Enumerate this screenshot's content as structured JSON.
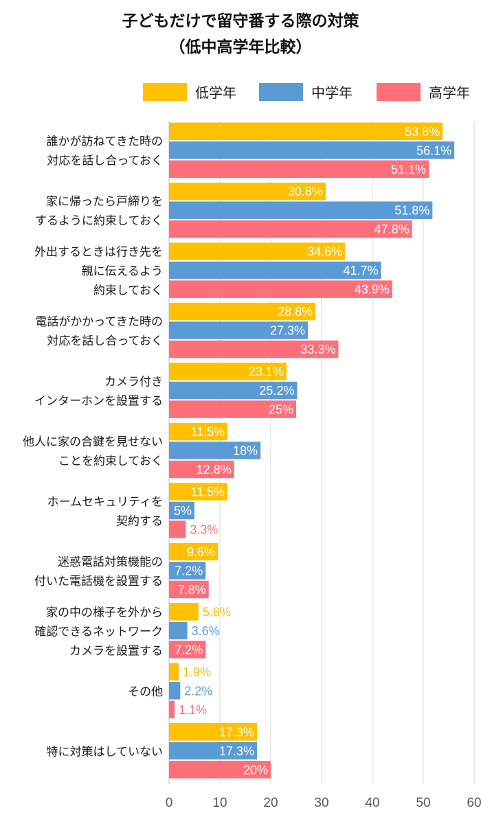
{
  "chart_data": {
    "type": "bar",
    "orientation": "horizontal",
    "title": "子どもだけで留守番する際の対策",
    "subtitle": "（低中高学年比較）",
    "legend_position": "top-right",
    "grid": true,
    "xlim": [
      0,
      60
    ],
    "xticks": [
      "0",
      "10",
      "20",
      "30",
      "40",
      "50",
      "60"
    ],
    "categories": [
      [
        "誰かが訪ねてきた時の",
        "対応を話し合っておく"
      ],
      [
        "家に帰ったら戸締りを",
        "するように約束しておく"
      ],
      [
        "外出するときは行き先を",
        "親に伝えるよう",
        "約束しておく"
      ],
      [
        "電話がかかってきた時の",
        "対応を話し合っておく"
      ],
      [
        "カメラ付き",
        "インターホンを設置する"
      ],
      [
        "他人に家の合鍵を見せない",
        "ことを約束しておく"
      ],
      [
        "ホームセキュリティを",
        "契約する"
      ],
      [
        "迷惑電話対策機能の",
        "付いた電話機を設置する"
      ],
      [
        "家の中の様子を外から",
        "確認できるネットワーク",
        "カメラを設置する"
      ],
      [
        "その他"
      ],
      [
        "特に対策はしていない"
      ]
    ],
    "series": [
      {
        "name": "低学年",
        "color": "#FFC000",
        "values": [
          53.8,
          30.8,
          34.6,
          28.8,
          23.1,
          11.5,
          11.5,
          9.6,
          5.8,
          1.9,
          17.3
        ],
        "labels": [
          "53.8%",
          "30.8%",
          "34.6%",
          "28.8%",
          "23.1%",
          "11.5%",
          "11.5%",
          "9.6%",
          "5.8%",
          "1.9%",
          "17.3%"
        ]
      },
      {
        "name": "中学年",
        "color": "#5B9BD5",
        "values": [
          56.1,
          51.8,
          41.7,
          27.3,
          25.2,
          18,
          5,
          7.2,
          3.6,
          2.2,
          17.3
        ],
        "labels": [
          "56.1%",
          "51.8%",
          "41.7%",
          "27.3%",
          "25.2%",
          "18%",
          "5%",
          "7.2%",
          "3.6%",
          "2.2%",
          "17.3%"
        ]
      },
      {
        "name": "高学年",
        "color": "#FF6F7A",
        "values": [
          51.1,
          47.8,
          43.9,
          33.3,
          25,
          12.8,
          3.3,
          7.8,
          7.2,
          1.1,
          20
        ],
        "labels": [
          "51.1%",
          "47.8%",
          "43.9%",
          "33.3%",
          "25%",
          "12.8%",
          "3.3%",
          "7.8%",
          "7.2%",
          "1.1%",
          "20%"
        ]
      }
    ]
  }
}
